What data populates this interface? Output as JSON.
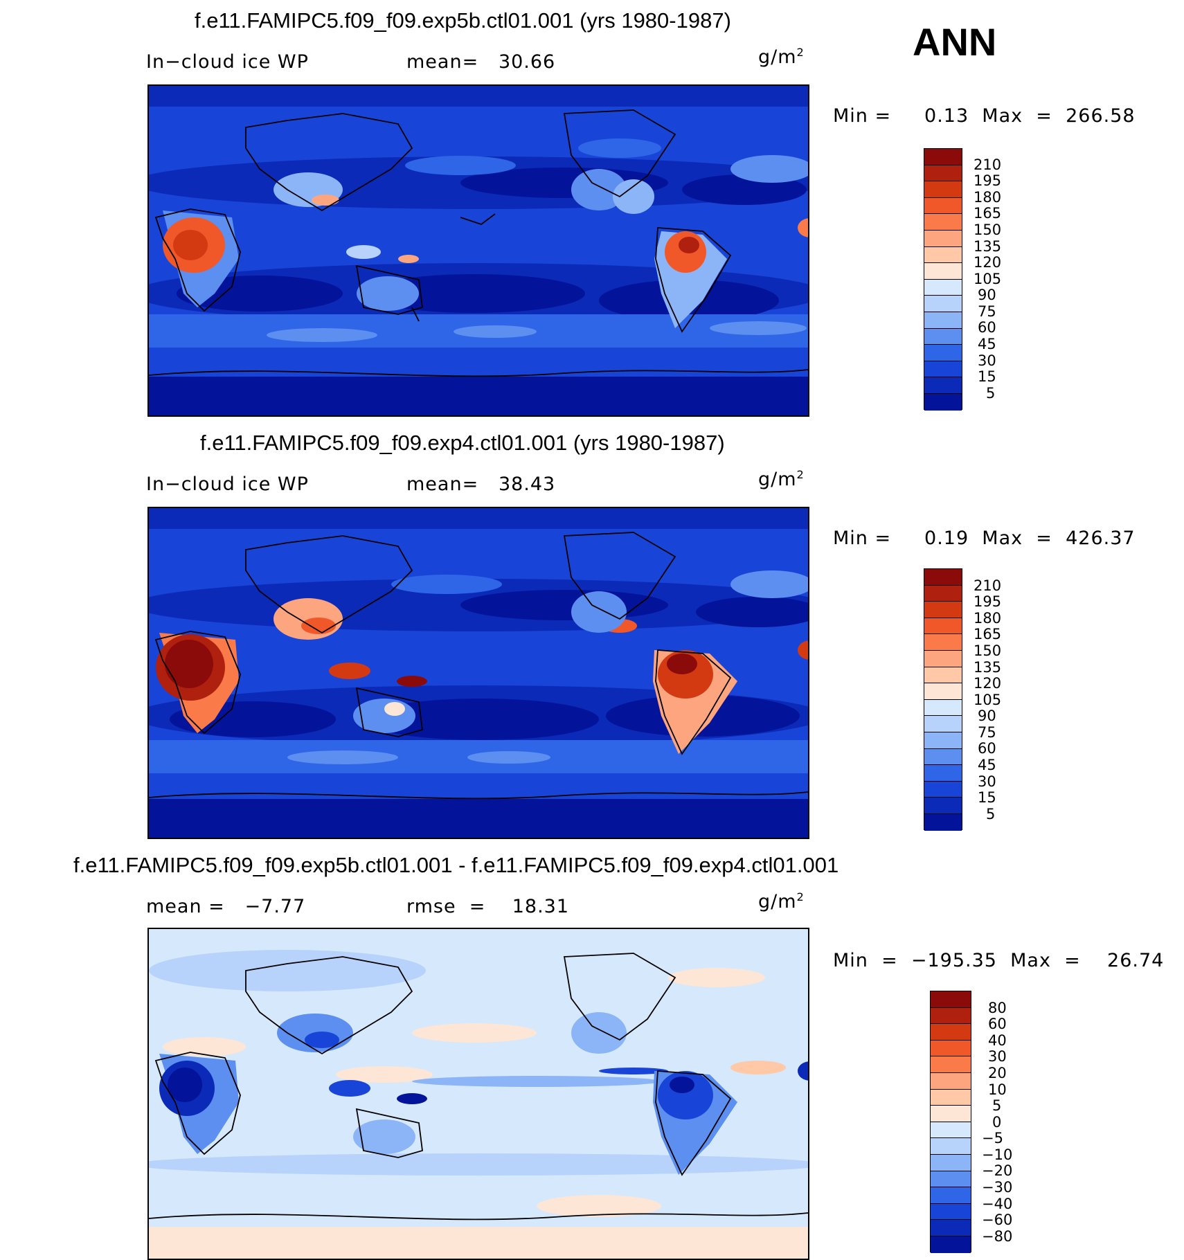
{
  "season_label": "ANN",
  "panels": [
    {
      "title": "f.e11.FAMIPC5.f09_f09.exp5b.ctl01.001 (yrs 1980-1987)",
      "variable": "In−cloud ice WP",
      "stat": "mean=   30.66",
      "units_base": "g/m",
      "units_exp": "2",
      "minmax": "Min =     0.13  Max  =  266.58",
      "colorbar_labels": [
        "210",
        "195",
        "180",
        "165",
        "150",
        "135",
        "120",
        "105",
        "90",
        "75",
        "60",
        "45",
        "30",
        "15",
        "5"
      ],
      "colorbar_colors": [
        "#8b0a0a",
        "#b0200e",
        "#d33a12",
        "#f0582a",
        "#fa7a49",
        "#fda57e",
        "#ffc9a8",
        "#fde6d6",
        "#d6e8fb",
        "#b7d3fb",
        "#8cb5f8",
        "#5d8ff0",
        "#2f66e8",
        "#1845d8",
        "#0b2ab8",
        "#03149a"
      ]
    },
    {
      "title": "f.e11.FAMIPC5.f09_f09.exp4.ctl01.001 (yrs 1980-1987)",
      "variable": "In−cloud ice WP",
      "stat": "mean=   38.43",
      "units_base": "g/m",
      "units_exp": "2",
      "minmax": "Min =     0.19  Max  =  426.37",
      "colorbar_labels": [
        "210",
        "195",
        "180",
        "165",
        "150",
        "135",
        "120",
        "105",
        "90",
        "75",
        "60",
        "45",
        "30",
        "15",
        "5"
      ],
      "colorbar_colors": [
        "#8b0a0a",
        "#b0200e",
        "#d33a12",
        "#f0582a",
        "#fa7a49",
        "#fda57e",
        "#ffc9a8",
        "#fde6d6",
        "#d6e8fb",
        "#b7d3fb",
        "#8cb5f8",
        "#5d8ff0",
        "#2f66e8",
        "#1845d8",
        "#0b2ab8",
        "#03149a"
      ]
    },
    {
      "title": "f.e11.FAMIPC5.f09_f09.exp5b.ctl01.001 - f.e11.FAMIPC5.f09_f09.exp4.ctl01.001",
      "variable": "mean =   −7.77",
      "stat": "rmse  =    18.31",
      "units_base": "g/m",
      "units_exp": "2",
      "minmax": "Min  =  −195.35  Max  =    26.74",
      "colorbar_labels": [
        "80",
        "60",
        "40",
        "30",
        "20",
        "10",
        "5",
        "0",
        "−5",
        "−10",
        "−20",
        "−30",
        "−40",
        "−60",
        "−80"
      ],
      "colorbar_colors": [
        "#8b0a0a",
        "#b0200e",
        "#d33a12",
        "#f0582a",
        "#fa7a49",
        "#fda57e",
        "#ffc9a8",
        "#fde6d6",
        "#d6e8fb",
        "#b7d3fb",
        "#8cb5f8",
        "#5d8ff0",
        "#2f66e8",
        "#1845d8",
        "#0b2ab8",
        "#03149a"
      ]
    }
  ],
  "colors": {
    "ocean_dark": "#03149a",
    "ocean_mid": "#1845d8",
    "band_light": "#5d8ff0",
    "diff_background": "#d6e8fb",
    "hot": "#d33a12"
  }
}
